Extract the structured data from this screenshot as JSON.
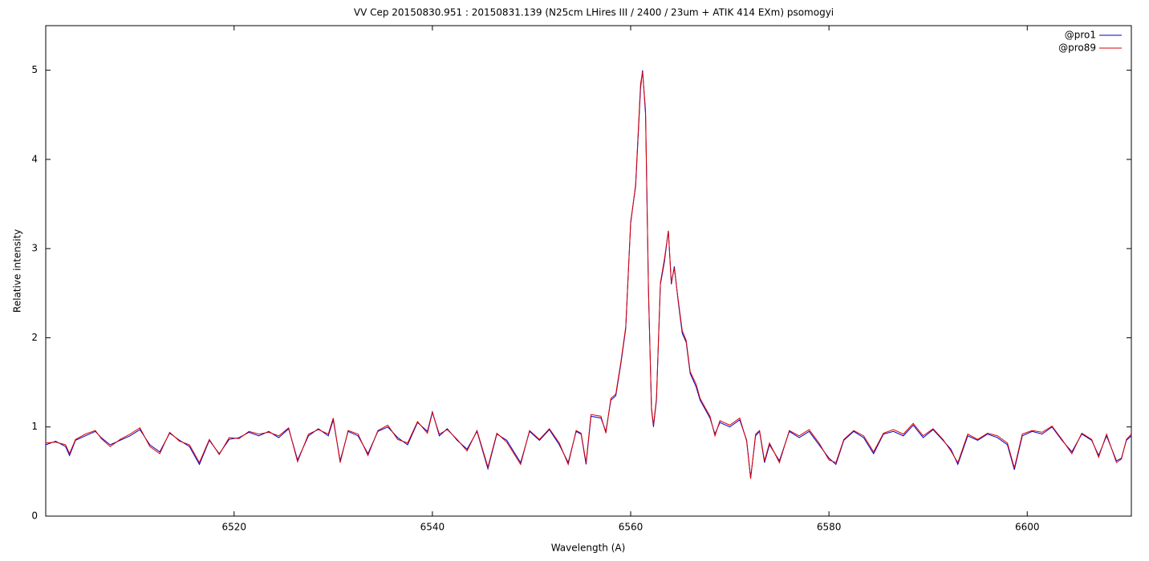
{
  "chart_data": {
    "type": "line",
    "title": "VV Cep 20150830.951 : 20150831.139  (N25cm LHires III / 2400 / 23um + ATIK 414 EXm) psomogyi",
    "x_label": "Wavelength (A)",
    "y_label": "Relative intensity",
    "xlim": [
      6501,
      6610.5
    ],
    "ylim": [
      0,
      5.5
    ],
    "xticks": [
      6520,
      6540,
      6560,
      6580,
      6600
    ],
    "yticks": [
      0,
      1,
      2,
      3,
      4,
      5
    ],
    "legend": "top-right",
    "x": [
      6501,
      6502,
      6503,
      6503.4,
      6504,
      6505,
      6506,
      6506.6,
      6507.5,
      6508.5,
      6509.5,
      6510.5,
      6511.5,
      6512.5,
      6513.5,
      6514.5,
      6515.5,
      6516.5,
      6517.5,
      6518.5,
      6519.5,
      6520.5,
      6521.5,
      6522.5,
      6523.5,
      6524.5,
      6525.5,
      6526.4,
      6527.5,
      6528.5,
      6529.5,
      6530,
      6530.7,
      6531.5,
      6532.5,
      6533.5,
      6534.5,
      6535.5,
      6536.5,
      6537.5,
      6538.5,
      6539.5,
      6540,
      6540.7,
      6541.5,
      6542.5,
      6543.5,
      6544.5,
      6545.6,
      6546.5,
      6547.5,
      6548.9,
      6549.8,
      6550.8,
      6551.8,
      6552.8,
      6553.7,
      6554.5,
      6555,
      6555.5,
      6556,
      6557,
      6557.5,
      6558,
      6558.5,
      6559,
      6559.5,
      6560,
      6560.5,
      6561,
      6561.2,
      6561.5,
      6561.8,
      6562.1,
      6562.3,
      6562.6,
      6563,
      6563.4,
      6563.8,
      6564.1,
      6564.4,
      6564.8,
      6565.2,
      6565.6,
      6566,
      6566.6,
      6567,
      6568,
      6568.5,
      6569,
      6570,
      6571,
      6571.7,
      6572.1,
      6572.6,
      6573,
      6573.5,
      6574,
      6575,
      6576,
      6577,
      6578,
      6579,
      6580,
      6580.7,
      6581.5,
      6582.5,
      6583.5,
      6584.5,
      6585.5,
      6586.5,
      6587.5,
      6588.5,
      6589.5,
      6590.5,
      6591.5,
      6592.3,
      6593,
      6594,
      6595,
      6596,
      6597,
      6598,
      6598.7,
      6599.5,
      6600.5,
      6601.5,
      6602.5,
      6603.5,
      6604.5,
      6605.5,
      6606.5,
      6607.2,
      6608,
      6609,
      6609.5,
      6610,
      6610.5
    ],
    "series": [
      {
        "name": "@pro1",
        "color": "#0000c8",
        "values": [
          0.8,
          0.84,
          0.78,
          0.68,
          0.85,
          0.9,
          0.95,
          0.88,
          0.8,
          0.85,
          0.9,
          0.97,
          0.8,
          0.72,
          0.93,
          0.85,
          0.78,
          0.58,
          0.85,
          0.7,
          0.86,
          0.88,
          0.94,
          0.9,
          0.95,
          0.88,
          0.98,
          0.63,
          0.9,
          0.98,
          0.9,
          1.08,
          0.62,
          0.95,
          0.9,
          0.7,
          0.95,
          1.0,
          0.88,
          0.8,
          1.05,
          0.95,
          1.17,
          0.9,
          0.98,
          0.85,
          0.75,
          0.95,
          0.53,
          0.92,
          0.85,
          0.6,
          0.95,
          0.85,
          0.97,
          0.8,
          0.6,
          0.95,
          0.92,
          0.58,
          1.12,
          1.1,
          0.95,
          1.3,
          1.35,
          1.7,
          2.1,
          3.3,
          3.7,
          4.8,
          5.0,
          4.5,
          2.5,
          1.2,
          1.0,
          1.3,
          2.6,
          2.85,
          3.2,
          2.6,
          2.8,
          2.4,
          2.05,
          1.95,
          1.6,
          1.45,
          1.3,
          1.1,
          0.92,
          1.05,
          1.0,
          1.08,
          0.85,
          0.43,
          0.9,
          0.95,
          0.6,
          0.8,
          0.62,
          0.95,
          0.88,
          0.95,
          0.8,
          0.65,
          0.58,
          0.85,
          0.95,
          0.88,
          0.7,
          0.92,
          0.95,
          0.9,
          1.02,
          0.88,
          0.97,
          0.85,
          0.75,
          0.58,
          0.9,
          0.85,
          0.92,
          0.88,
          0.8,
          0.52,
          0.9,
          0.95,
          0.92,
          1.0,
          0.85,
          0.72,
          0.92,
          0.85,
          0.68,
          0.9,
          0.62,
          0.65,
          0.85,
          0.9
        ]
      },
      {
        "name": "@pro89",
        "color": "#dc0000",
        "values": [
          0.82,
          0.83,
          0.8,
          0.7,
          0.86,
          0.92,
          0.96,
          0.87,
          0.78,
          0.86,
          0.92,
          0.99,
          0.78,
          0.7,
          0.94,
          0.84,
          0.8,
          0.6,
          0.86,
          0.69,
          0.88,
          0.87,
          0.95,
          0.92,
          0.94,
          0.9,
          0.99,
          0.61,
          0.92,
          0.97,
          0.92,
          1.1,
          0.6,
          0.96,
          0.92,
          0.68,
          0.96,
          1.02,
          0.86,
          0.82,
          1.06,
          0.93,
          1.16,
          0.92,
          0.97,
          0.86,
          0.73,
          0.96,
          0.55,
          0.93,
          0.83,
          0.58,
          0.96,
          0.86,
          0.98,
          0.82,
          0.58,
          0.96,
          0.93,
          0.6,
          1.14,
          1.12,
          0.93,
          1.32,
          1.37,
          1.72,
          2.12,
          3.28,
          3.72,
          4.85,
          4.98,
          4.55,
          2.52,
          1.22,
          1.02,
          1.32,
          2.62,
          2.88,
          3.2,
          2.62,
          2.78,
          2.42,
          2.08,
          1.97,
          1.62,
          1.48,
          1.32,
          1.12,
          0.9,
          1.07,
          1.02,
          1.1,
          0.84,
          0.42,
          0.92,
          0.96,
          0.62,
          0.82,
          0.6,
          0.96,
          0.9,
          0.97,
          0.82,
          0.63,
          0.6,
          0.86,
          0.96,
          0.9,
          0.72,
          0.93,
          0.97,
          0.92,
          1.04,
          0.9,
          0.98,
          0.86,
          0.73,
          0.6,
          0.92,
          0.86,
          0.93,
          0.9,
          0.82,
          0.54,
          0.92,
          0.96,
          0.94,
          1.01,
          0.86,
          0.7,
          0.93,
          0.86,
          0.66,
          0.92,
          0.6,
          0.64,
          0.86,
          0.92
        ]
      }
    ]
  }
}
